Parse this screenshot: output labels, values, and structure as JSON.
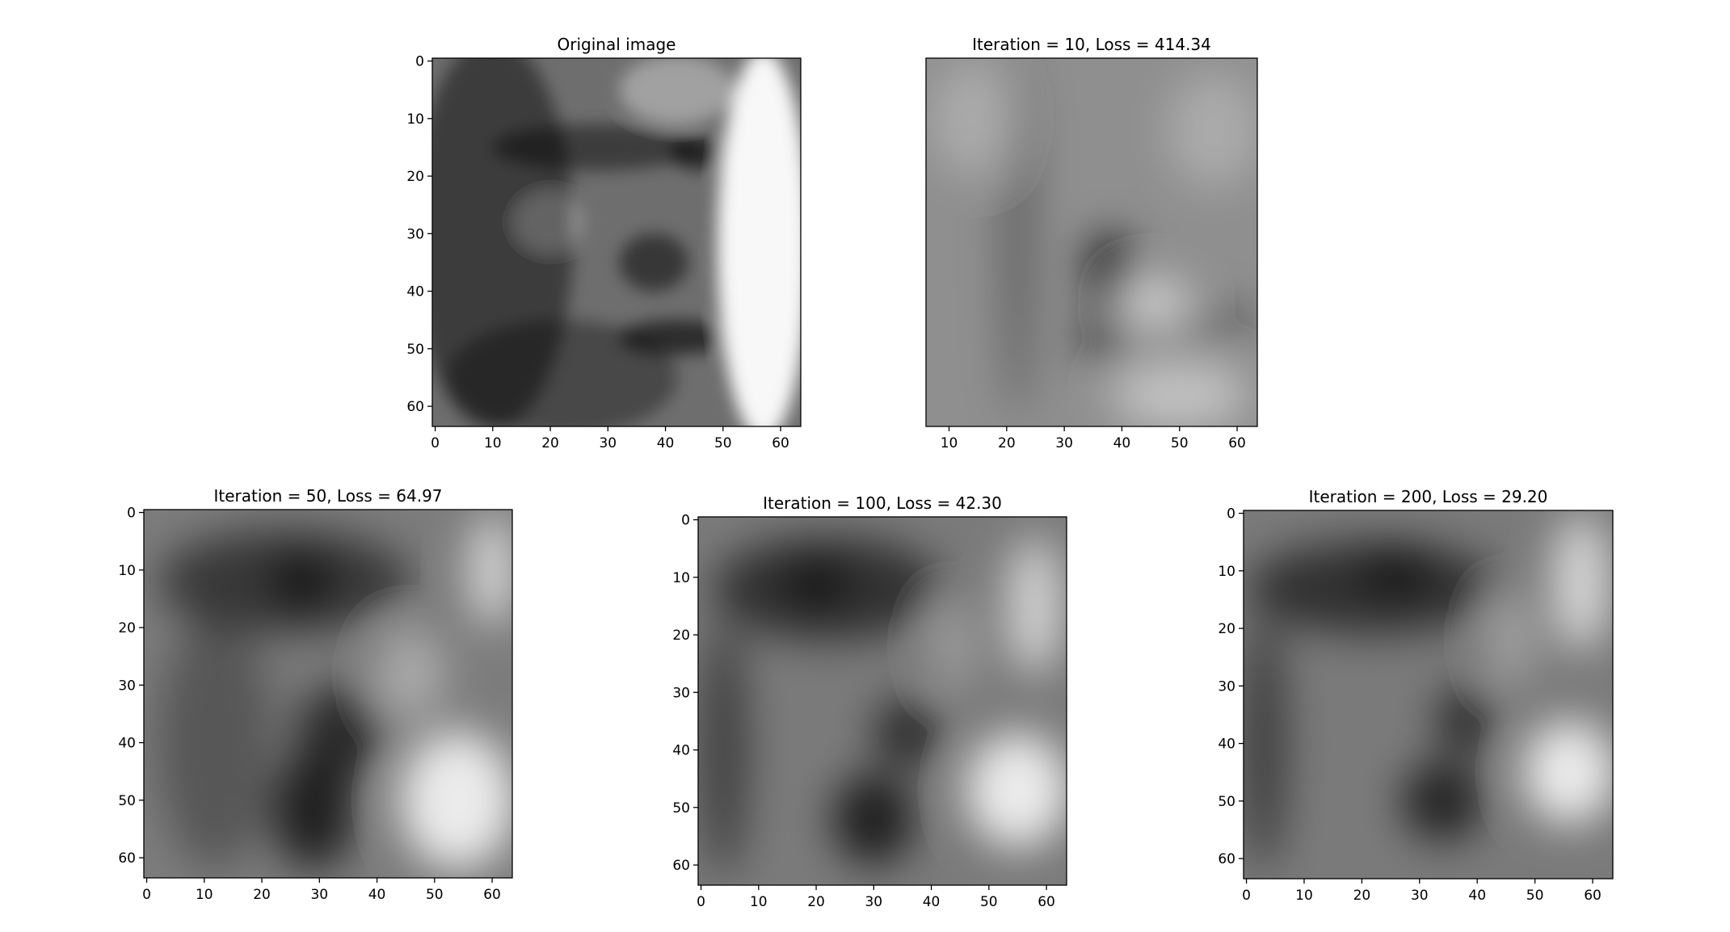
{
  "chart_data": [
    {
      "type": "heatmap",
      "title": "Original image",
      "colormap": "gray",
      "xlim": [
        -0.5,
        63.5
      ],
      "ylim": [
        63.5,
        -0.5
      ],
      "xticks": [
        0,
        10,
        20,
        30,
        40,
        50,
        60
      ],
      "yticks": [
        0,
        10,
        20,
        30,
        40,
        50,
        60
      ],
      "features": [
        {
          "kind": "dark",
          "x": 10,
          "y": 30,
          "rx": 14,
          "ry": 34,
          "opacity": 0.45
        },
        {
          "kind": "dark",
          "x": 22,
          "y": 55,
          "rx": 20,
          "ry": 10,
          "opacity": 0.35
        },
        {
          "kind": "dark",
          "x": 28,
          "y": 15,
          "rx": 18,
          "ry": 4,
          "opacity": 0.45
        },
        {
          "kind": "dark",
          "x": 46,
          "y": 16,
          "rx": 5,
          "ry": 3,
          "opacity": 0.6
        },
        {
          "kind": "dark",
          "x": 38,
          "y": 35,
          "rx": 6,
          "ry": 5,
          "opacity": 0.5
        },
        {
          "kind": "dark",
          "x": 42,
          "y": 48,
          "rx": 10,
          "ry": 3,
          "opacity": 0.6
        },
        {
          "kind": "bright",
          "x": 57,
          "y": 32,
          "rx": 8,
          "ry": 34,
          "opacity": 0.95
        },
        {
          "kind": "bright",
          "x": 42,
          "y": 5,
          "rx": 10,
          "ry": 6,
          "opacity": 0.35
        },
        {
          "kind": "bright",
          "x": 20,
          "y": 28,
          "rx": 6,
          "ry": 5,
          "opacity": 0.2
        }
      ]
    },
    {
      "type": "heatmap",
      "title": "Iteration = 10, Loss = 414.34",
      "colormap": "gray",
      "xlim": [
        6,
        63.5
      ],
      "ylim": [
        63.5,
        -0.5
      ],
      "xticks": [
        10,
        20,
        30,
        40,
        50,
        60
      ],
      "yticks": [],
      "features": [
        {
          "kind": "dark",
          "x": 38,
          "y": 36,
          "rx": 4,
          "ry": 6,
          "opacity": 0.85
        },
        {
          "kind": "dark",
          "x": 37,
          "y": 48,
          "rx": 4,
          "ry": 5,
          "opacity": 0.6
        },
        {
          "kind": "dark",
          "x": 22,
          "y": 30,
          "rx": 3,
          "ry": 32,
          "opacity": 0.3
        },
        {
          "kind": "dark",
          "x": 56,
          "y": 46,
          "rx": 8,
          "ry": 4,
          "opacity": 0.3
        },
        {
          "kind": "bright",
          "x": 46,
          "y": 42,
          "rx": 6,
          "ry": 4,
          "opacity": 0.6
        },
        {
          "kind": "bright",
          "x": 50,
          "y": 58,
          "rx": 12,
          "ry": 6,
          "opacity": 0.45
        },
        {
          "kind": "bright",
          "x": 14,
          "y": 10,
          "rx": 7,
          "ry": 10,
          "opacity": 0.25
        },
        {
          "kind": "bright",
          "x": 56,
          "y": 12,
          "rx": 8,
          "ry": 10,
          "opacity": 0.25
        }
      ]
    },
    {
      "type": "heatmap",
      "title": "Iteration = 50, Loss = 64.97",
      "colormap": "gray",
      "xlim": [
        -0.5,
        63.5
      ],
      "ylim": [
        63.5,
        -0.5
      ],
      "xticks": [
        0,
        10,
        20,
        30,
        40,
        50,
        60
      ],
      "yticks": [
        0,
        10,
        20,
        30,
        40,
        50,
        60
      ],
      "features": [
        {
          "kind": "dark",
          "x": 24,
          "y": 12,
          "rx": 22,
          "ry": 9,
          "opacity": 0.55
        },
        {
          "kind": "dark",
          "x": 27,
          "y": 12,
          "rx": 5,
          "ry": 5,
          "opacity": 0.6
        },
        {
          "kind": "dark",
          "x": 34,
          "y": 38,
          "rx": 8,
          "ry": 8,
          "opacity": 0.65
        },
        {
          "kind": "dark",
          "x": 29,
          "y": 52,
          "rx": 7,
          "ry": 10,
          "opacity": 0.75
        },
        {
          "kind": "dark",
          "x": 12,
          "y": 40,
          "rx": 10,
          "ry": 22,
          "opacity": 0.3
        },
        {
          "kind": "bright",
          "x": 60,
          "y": 10,
          "rx": 4,
          "ry": 10,
          "opacity": 0.7
        },
        {
          "kind": "bright",
          "x": 54,
          "y": 50,
          "rx": 10,
          "ry": 12,
          "opacity": 0.85
        },
        {
          "kind": "bright",
          "x": 46,
          "y": 28,
          "rx": 6,
          "ry": 8,
          "opacity": 0.35
        }
      ]
    },
    {
      "type": "heatmap",
      "title": "Iteration = 100, Loss = 42.30",
      "colormap": "gray",
      "xlim": [
        -0.5,
        63.5
      ],
      "ylim": [
        63.5,
        -0.5
      ],
      "xticks": [
        0,
        10,
        20,
        30,
        40,
        50,
        60
      ],
      "yticks": [
        0,
        10,
        20,
        30,
        40,
        50,
        60
      ],
      "features": [
        {
          "kind": "dark",
          "x": 22,
          "y": 12,
          "rx": 20,
          "ry": 9,
          "opacity": 0.6
        },
        {
          "kind": "dark",
          "x": 20,
          "y": 11,
          "rx": 5,
          "ry": 4,
          "opacity": 0.6
        },
        {
          "kind": "dark",
          "x": 36,
          "y": 37,
          "rx": 6,
          "ry": 6,
          "opacity": 0.65
        },
        {
          "kind": "dark",
          "x": 30,
          "y": 52,
          "rx": 7,
          "ry": 8,
          "opacity": 0.75
        },
        {
          "kind": "dark",
          "x": 4,
          "y": 40,
          "rx": 4,
          "ry": 22,
          "opacity": 0.5
        },
        {
          "kind": "bright",
          "x": 58,
          "y": 15,
          "rx": 5,
          "ry": 12,
          "opacity": 0.65
        },
        {
          "kind": "bright",
          "x": 55,
          "y": 47,
          "rx": 9,
          "ry": 10,
          "opacity": 0.85
        },
        {
          "kind": "bright",
          "x": 44,
          "y": 22,
          "rx": 4,
          "ry": 8,
          "opacity": 0.25
        }
      ]
    },
    {
      "type": "heatmap",
      "title": "Iteration = 200, Loss = 29.20",
      "colormap": "gray",
      "xlim": [
        -0.5,
        63.5
      ],
      "ylim": [
        63.5,
        -0.5
      ],
      "xticks": [
        0,
        10,
        20,
        30,
        40,
        50,
        60
      ],
      "yticks": [
        0,
        10,
        20,
        30,
        40,
        50,
        60
      ],
      "features": [
        {
          "kind": "dark",
          "x": 22,
          "y": 13,
          "rx": 22,
          "ry": 8,
          "opacity": 0.6
        },
        {
          "kind": "dark",
          "x": 26,
          "y": 10,
          "rx": 6,
          "ry": 4,
          "opacity": 0.55
        },
        {
          "kind": "dark",
          "x": 38,
          "y": 36,
          "rx": 5,
          "ry": 6,
          "opacity": 0.65
        },
        {
          "kind": "dark",
          "x": 34,
          "y": 50,
          "rx": 7,
          "ry": 7,
          "opacity": 0.7
        },
        {
          "kind": "dark",
          "x": 3,
          "y": 40,
          "rx": 4,
          "ry": 22,
          "opacity": 0.5
        },
        {
          "kind": "bright",
          "x": 58,
          "y": 12,
          "rx": 5,
          "ry": 12,
          "opacity": 0.7
        },
        {
          "kind": "bright",
          "x": 56,
          "y": 45,
          "rx": 8,
          "ry": 9,
          "opacity": 0.85
        },
        {
          "kind": "bright",
          "x": 46,
          "y": 22,
          "rx": 4,
          "ry": 8,
          "opacity": 0.3
        }
      ]
    }
  ]
}
